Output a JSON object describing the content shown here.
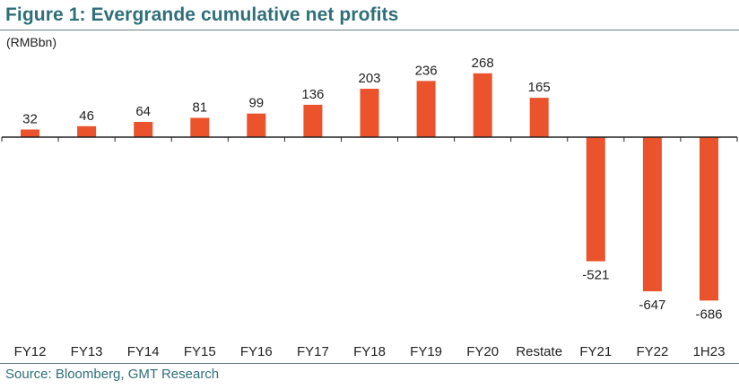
{
  "title": "Figure 1: Evergrande cumulative net profits",
  "source": "Source: Bloomberg, GMT Research",
  "colors": {
    "bar": "#ea532c",
    "title": "#2f6f78",
    "axis": "#222222"
  },
  "chart_data": {
    "type": "bar",
    "title": "Figure 1: Evergrande cumulative net profits",
    "ylabel": "(RMBbn)",
    "xlabel": "",
    "categories": [
      "FY12",
      "FY13",
      "FY14",
      "FY15",
      "FY16",
      "FY17",
      "FY18",
      "FY19",
      "FY20",
      "Restate",
      "FY21",
      "FY22",
      "1H23"
    ],
    "values": [
      32,
      46,
      64,
      81,
      99,
      136,
      203,
      236,
      268,
      165,
      -521,
      -647,
      -686
    ],
    "ylim": [
      -700,
      300
    ],
    "grid": false,
    "legend": "none"
  }
}
